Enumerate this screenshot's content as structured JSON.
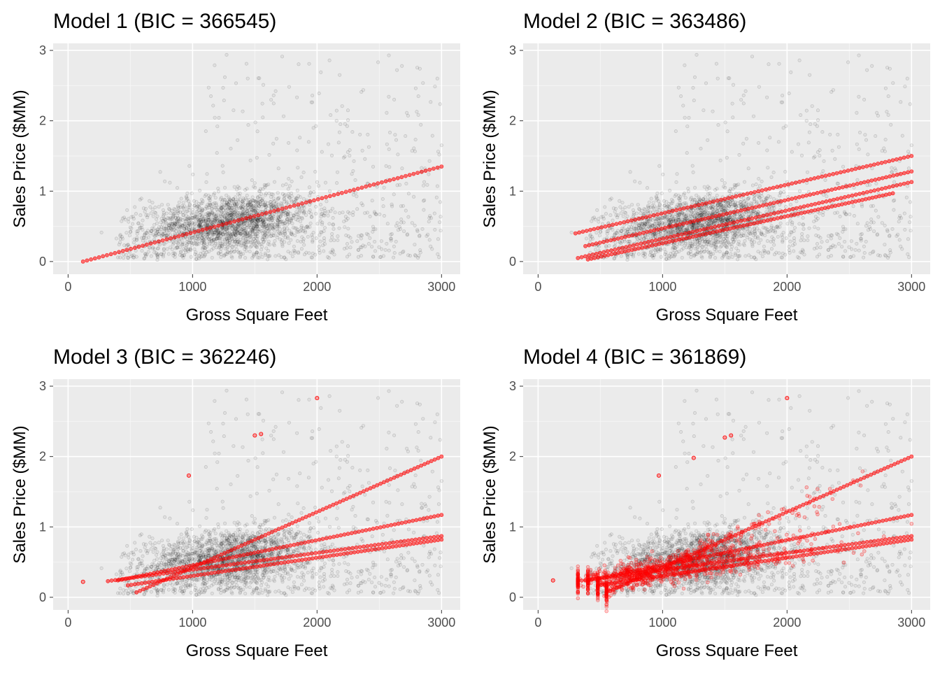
{
  "colors": {
    "panel_background": "#ebebeb",
    "grid_major": "#ffffff",
    "grid_minor": "#f5f5f5",
    "observed_points": "#000000",
    "fitted_points": "#ff0000",
    "tick_text": "#4d4d4d"
  },
  "chart_data": [
    {
      "type": "scatter",
      "title": "Model 1 (BIC = 366545)",
      "xlabel": "Gross Square Feet",
      "ylabel": "Sales Price ($MM)",
      "xlim": [
        -120,
        3150
      ],
      "ylim": [
        -0.18,
        3.1
      ],
      "xticks": [
        "0",
        "1000",
        "2000",
        "3000"
      ],
      "yticks": [
        "0",
        "1",
        "2",
        "3"
      ],
      "grid": true,
      "legend": "none",
      "observed": {
        "x_range": [
          120,
          3000
        ],
        "y_range": [
          0,
          2.95
        ],
        "density_center": [
          1300,
          0.55
        ]
      },
      "fitted_series": [
        {
          "x": [
            120,
            3000
          ],
          "y": [
            0.0,
            1.35
          ]
        }
      ],
      "fitted_outliers": []
    },
    {
      "type": "scatter",
      "title": "Model 2 (BIC = 363486)",
      "xlabel": "Gross Square Feet",
      "ylabel": "Sales Price ($MM)",
      "xlim": [
        -120,
        3150
      ],
      "ylim": [
        -0.18,
        3.1
      ],
      "xticks": [
        "0",
        "1000",
        "2000",
        "3000"
      ],
      "yticks": [
        "0",
        "1",
        "2",
        "3"
      ],
      "grid": true,
      "legend": "none",
      "observed": {
        "x_range": [
          120,
          3000
        ],
        "y_range": [
          0,
          2.95
        ],
        "density_center": [
          1300,
          0.55
        ]
      },
      "fitted_series": [
        {
          "x": [
            300,
            3000
          ],
          "y": [
            0.4,
            1.5
          ]
        },
        {
          "x": [
            380,
            3000
          ],
          "y": [
            0.22,
            1.28
          ]
        },
        {
          "x": [
            320,
            3000
          ],
          "y": [
            0.05,
            1.13
          ]
        },
        {
          "x": [
            400,
            2850
          ],
          "y": [
            0.03,
            0.97
          ]
        }
      ],
      "fitted_outliers": []
    },
    {
      "type": "scatter",
      "title": "Model 3 (BIC = 362246)",
      "xlabel": "Gross Square Feet",
      "ylabel": "Sales Price ($MM)",
      "xlim": [
        -120,
        3150
      ],
      "ylim": [
        -0.18,
        3.1
      ],
      "xticks": [
        "0",
        "1000",
        "2000",
        "3000"
      ],
      "yticks": [
        "0",
        "1",
        "2",
        "3"
      ],
      "grid": true,
      "legend": "none",
      "observed": {
        "x_range": [
          120,
          3000
        ],
        "y_range": [
          0,
          2.95
        ],
        "density_center": [
          1300,
          0.55
        ]
      },
      "fitted_series": [
        {
          "x": [
            550,
            3000
          ],
          "y": [
            0.07,
            2.0
          ]
        },
        {
          "x": [
            400,
            3000
          ],
          "y": [
            0.24,
            1.17
          ]
        },
        {
          "x": [
            320,
            3000
          ],
          "y": [
            0.23,
            0.87
          ]
        },
        {
          "x": [
            480,
            3000
          ],
          "y": [
            0.17,
            0.82
          ]
        }
      ],
      "fitted_outliers": [
        {
          "x": 120,
          "y": 0.22
        },
        {
          "x": 970,
          "y": 1.73
        },
        {
          "x": 1500,
          "y": 2.3
        },
        {
          "x": 1550,
          "y": 2.32
        },
        {
          "x": 2000,
          "y": 2.83
        }
      ]
    },
    {
      "type": "scatter",
      "title": "Model 4 (BIC = 361869)",
      "xlabel": "Gross Square Feet",
      "ylabel": "Sales Price ($MM)",
      "xlim": [
        -120,
        3150
      ],
      "ylim": [
        -0.18,
        3.1
      ],
      "xticks": [
        "0",
        "1000",
        "2000",
        "3000"
      ],
      "yticks": [
        "0",
        "1",
        "2",
        "3"
      ],
      "grid": true,
      "legend": "none",
      "observed": {
        "x_range": [
          120,
          3000
        ],
        "y_range": [
          0,
          2.95
        ],
        "density_center": [
          1300,
          0.55
        ]
      },
      "fitted_series": [
        {
          "x": [
            550,
            3000
          ],
          "y": [
            0.07,
            2.0
          ]
        },
        {
          "x": [
            400,
            3000
          ],
          "y": [
            0.24,
            1.17
          ]
        },
        {
          "x": [
            320,
            3000
          ],
          "y": [
            0.23,
            0.87
          ]
        },
        {
          "x": [
            480,
            3000
          ],
          "y": [
            0.17,
            0.82
          ]
        }
      ],
      "fitted_outliers": [
        {
          "x": 120,
          "y": 0.24
        },
        {
          "x": 970,
          "y": 1.73
        },
        {
          "x": 1250,
          "y": 1.98
        },
        {
          "x": 1500,
          "y": 2.27
        },
        {
          "x": 1550,
          "y": 2.3
        },
        {
          "x": 2000,
          "y": 2.83
        }
      ]
    }
  ]
}
